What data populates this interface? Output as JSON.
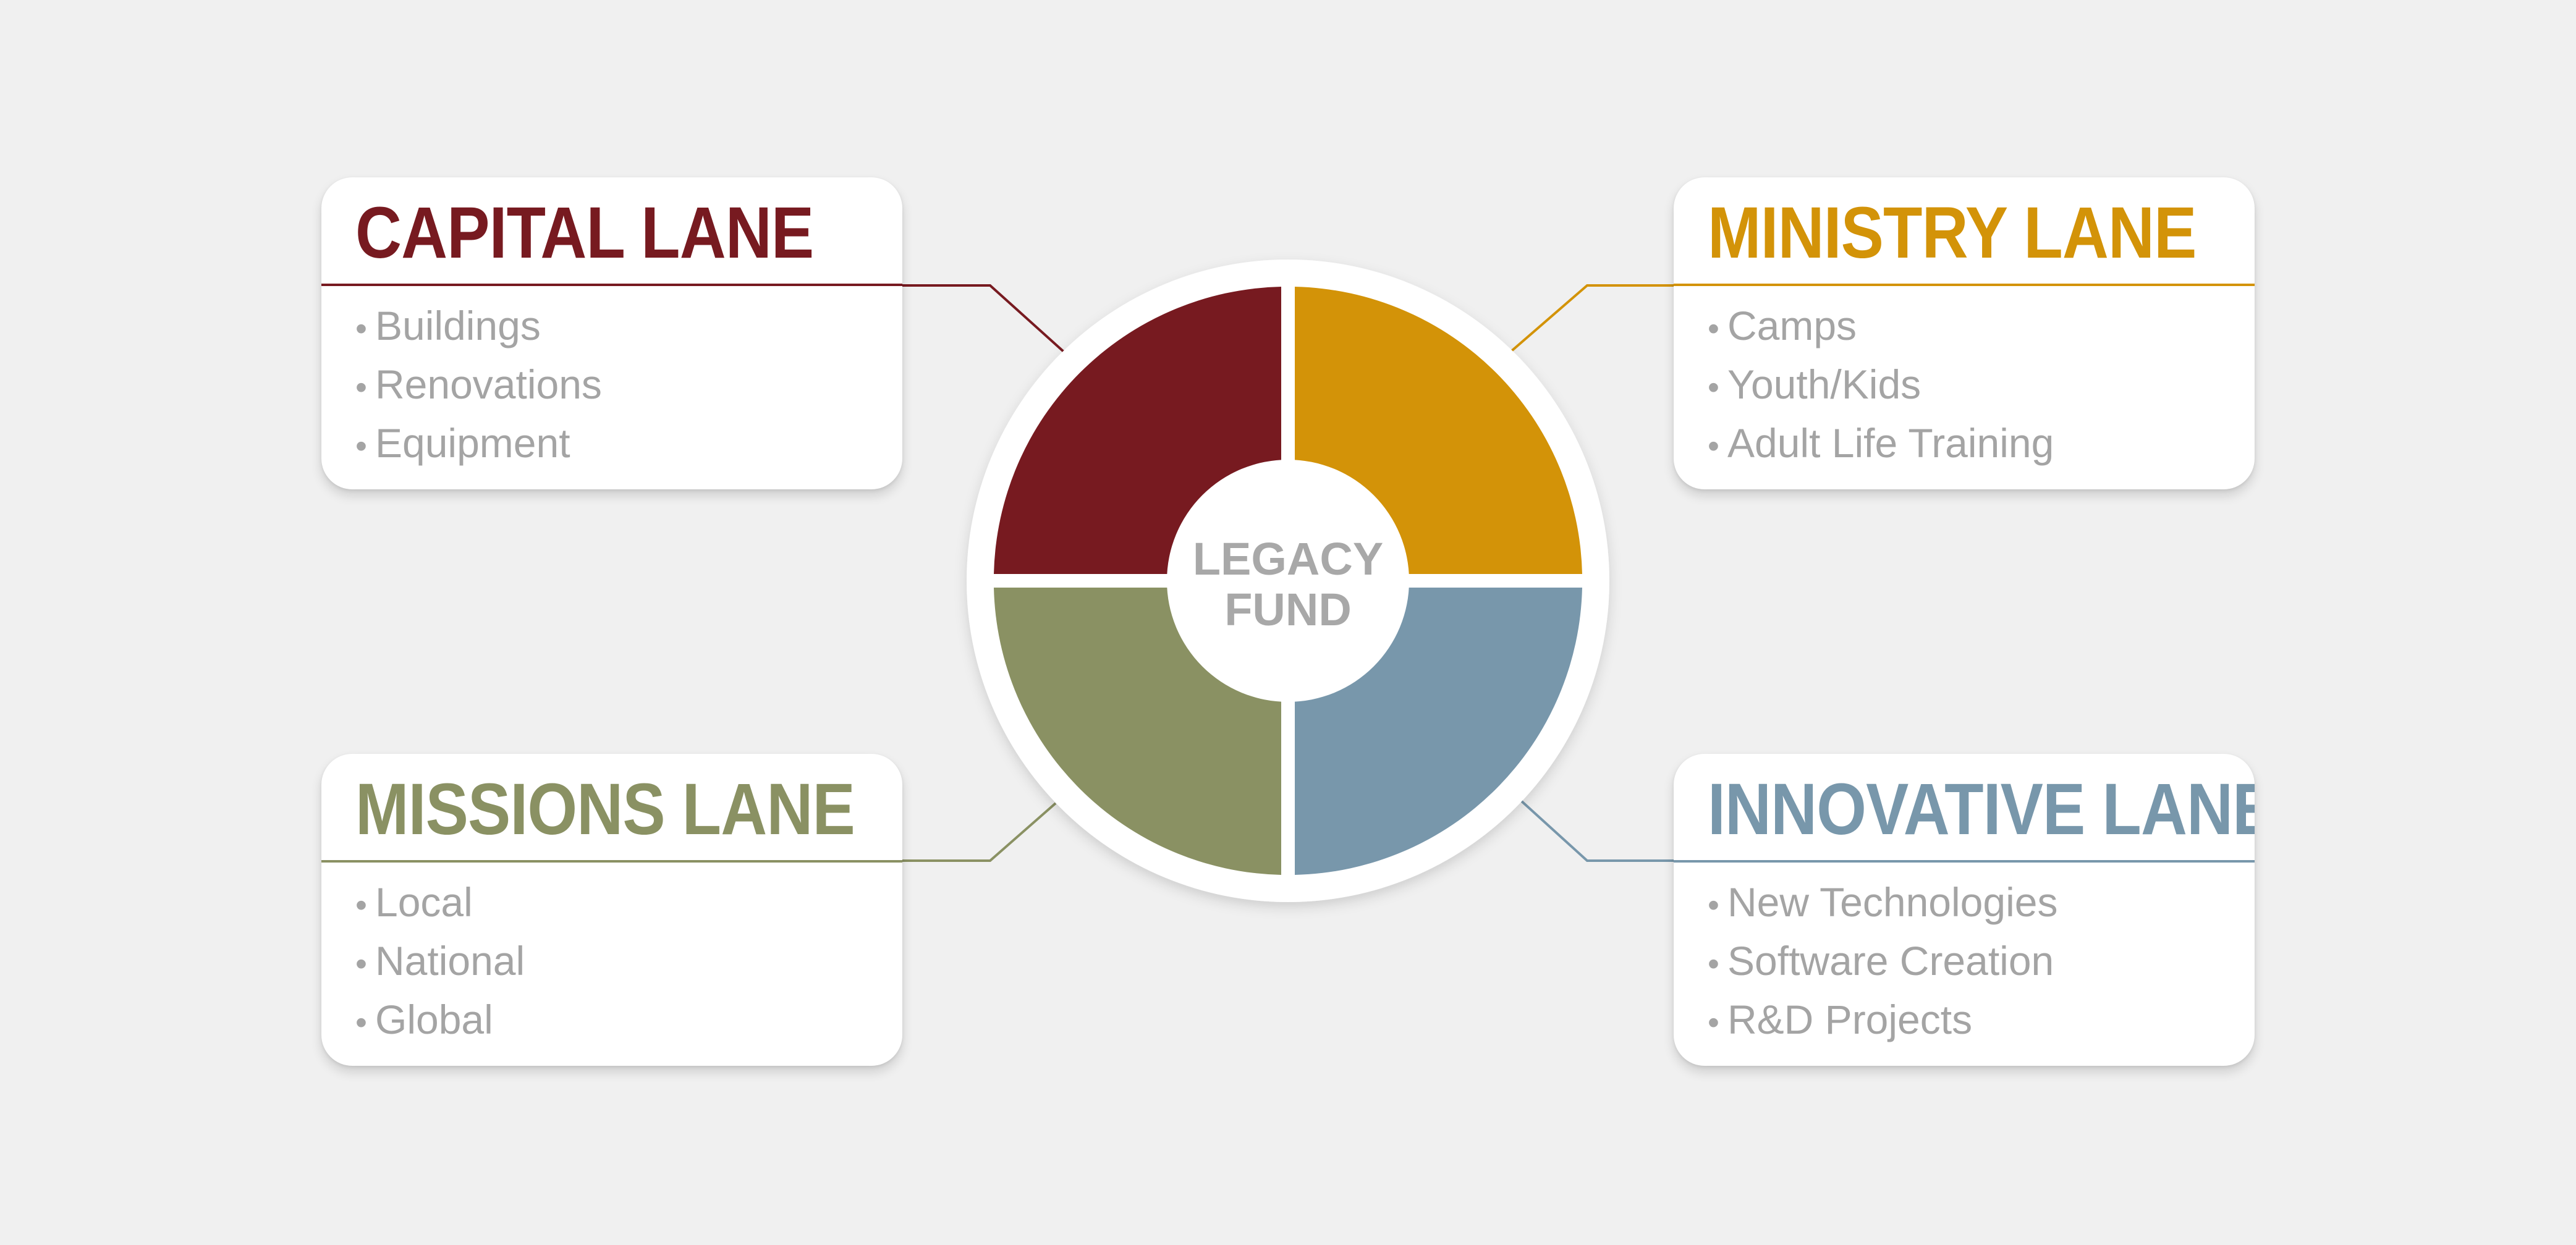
{
  "center": {
    "line1": "LEGACY",
    "line2": "FUND"
  },
  "lanes": [
    {
      "id": "capital",
      "title": "CAPITAL LANE",
      "color": "#771a20",
      "items": [
        "Buildings",
        "Renovations",
        "Equipment"
      ]
    },
    {
      "id": "ministry",
      "title": "MINISTRY LANE",
      "color": "#d39308",
      "items": [
        "Camps",
        "Youth/Kids",
        "Adult Life Training"
      ]
    },
    {
      "id": "missions",
      "title": "MISSIONS LANE",
      "color": "#8a9163",
      "items": [
        "Local",
        "National",
        "Global"
      ]
    },
    {
      "id": "innovative",
      "title": "INNOVATIVE LANE",
      "color": "#7897ab",
      "items": [
        "New Technologies",
        "Software Creation",
        "R&D Projects"
      ]
    }
  ],
  "bullet": "•"
}
